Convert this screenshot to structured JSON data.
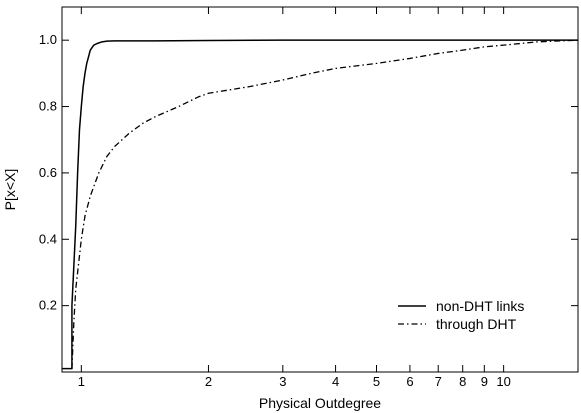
{
  "chart_data": {
    "type": "line",
    "title": "",
    "xlabel": "Physical Outdegree",
    "ylabel": "P[x<X]",
    "xscale": "log",
    "xlim": [
      0.9,
      15
    ],
    "ylim": [
      0,
      1.1
    ],
    "grid": false,
    "legend_position": "bottom-right",
    "x_ticks": [
      1,
      2,
      3,
      4,
      5,
      6,
      7,
      8,
      9,
      10
    ],
    "x_tick_labels": [
      "1",
      "2",
      "3",
      "4",
      "5",
      "6",
      "7",
      "8",
      "9",
      "10"
    ],
    "y_ticks": [
      0.2,
      0.4,
      0.6,
      0.8,
      1.0
    ],
    "y_tick_labels": [
      "0.2",
      "0.4",
      "0.6",
      "0.8",
      "1.0"
    ],
    "series": [
      {
        "name": "non-DHT links",
        "style": "solid",
        "x": [
          0.9,
          0.95,
          0.95,
          0.96,
          0.97,
          0.98,
          0.99,
          1.0,
          1.01,
          1.02,
          1.03,
          1.04,
          1.05,
          1.07,
          1.09,
          1.12,
          1.15,
          1.2,
          1.5,
          2,
          3,
          5,
          10,
          15
        ],
        "y": [
          0.01,
          0.01,
          0.2,
          0.32,
          0.44,
          0.6,
          0.73,
          0.8,
          0.86,
          0.9,
          0.93,
          0.95,
          0.97,
          0.985,
          0.99,
          0.995,
          0.997,
          0.998,
          0.998,
          0.999,
          1.0,
          1.0,
          1.0,
          1.0
        ]
      },
      {
        "name": "through DHT",
        "style": "dash-dot",
        "x": [
          0.95,
          0.96,
          0.97,
          0.99,
          1.0,
          1.02,
          1.05,
          1.1,
          1.15,
          1.2,
          1.3,
          1.4,
          1.5,
          1.7,
          1.9,
          2.0,
          2.5,
          3,
          3.5,
          4,
          5,
          6,
          7,
          8,
          9,
          10,
          12,
          15
        ],
        "y": [
          0.01,
          0.15,
          0.25,
          0.35,
          0.4,
          0.47,
          0.53,
          0.6,
          0.65,
          0.68,
          0.72,
          0.75,
          0.77,
          0.8,
          0.83,
          0.84,
          0.86,
          0.88,
          0.9,
          0.915,
          0.93,
          0.945,
          0.96,
          0.97,
          0.98,
          0.985,
          0.995,
          1.0
        ]
      }
    ]
  }
}
